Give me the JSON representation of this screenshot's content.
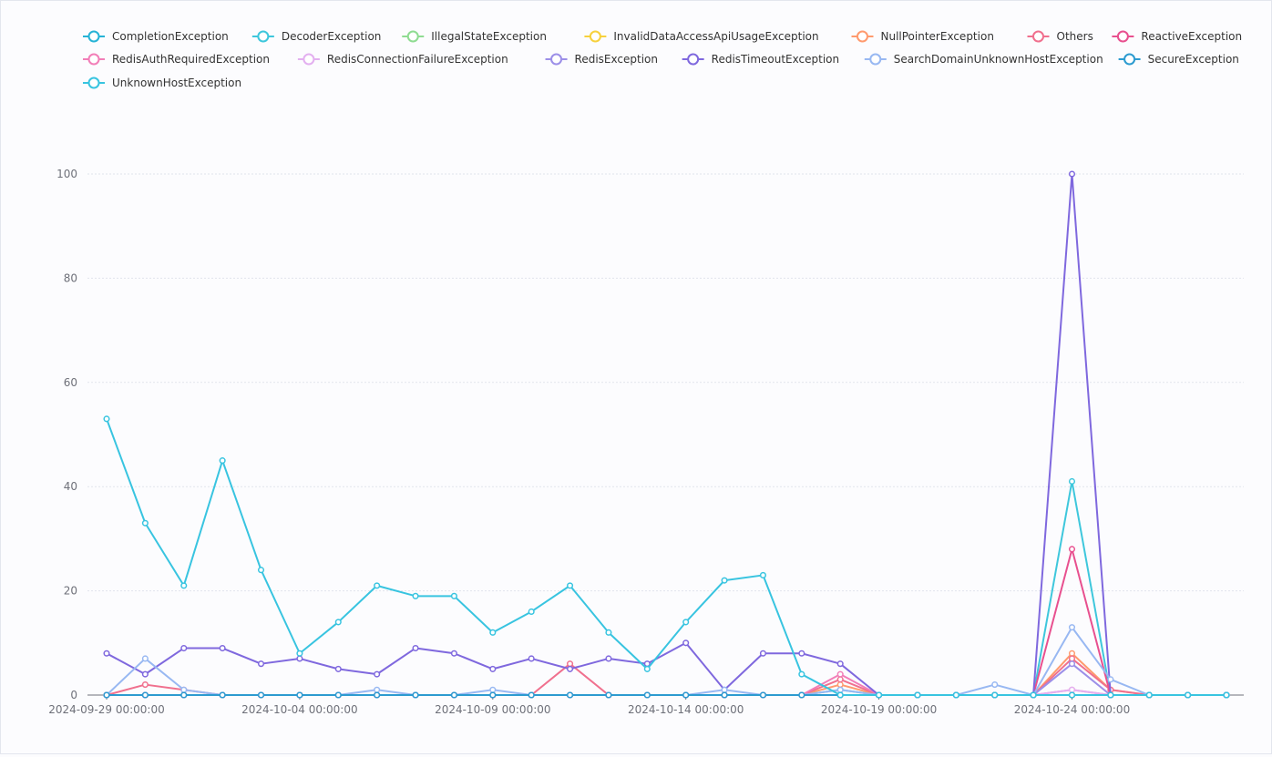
{
  "chart_data": {
    "type": "line",
    "title": "",
    "xlabel": "",
    "ylabel": "",
    "ylim": [
      0,
      100
    ],
    "yticks": [
      0,
      20,
      40,
      60,
      80,
      100
    ],
    "grid": true,
    "legend": "top-left",
    "x": [
      "2024-09-29 00:00:00",
      "2024-09-30 00:00:00",
      "2024-10-01 00:00:00",
      "2024-10-02 00:00:00",
      "2024-10-03 00:00:00",
      "2024-10-04 00:00:00",
      "2024-10-05 00:00:00",
      "2024-10-06 00:00:00",
      "2024-10-07 00:00:00",
      "2024-10-08 00:00:00",
      "2024-10-09 00:00:00",
      "2024-10-10 00:00:00",
      "2024-10-11 00:00:00",
      "2024-10-12 00:00:00",
      "2024-10-13 00:00:00",
      "2024-10-14 00:00:00",
      "2024-10-15 00:00:00",
      "2024-10-16 00:00:00",
      "2024-10-17 00:00:00",
      "2024-10-18 00:00:00",
      "2024-10-19 00:00:00",
      "2024-10-20 00:00:00",
      "2024-10-21 00:00:00",
      "2024-10-22 00:00:00",
      "2024-10-23 00:00:00",
      "2024-10-24 00:00:00",
      "2024-10-25 00:00:00",
      "2024-10-26 00:00:00",
      "2024-10-27 00:00:00",
      "2024-10-28 00:00:00"
    ],
    "xtick_labels": [
      "2024-09-29 00:00:00",
      "2024-10-04 00:00:00",
      "2024-10-09 00:00:00",
      "2024-10-14 00:00:00",
      "2024-10-19 00:00:00",
      "2024-10-24 00:00:00"
    ],
    "series": [
      {
        "name": "CompletionException",
        "color": "#26b3d6",
        "values": [
          0,
          0,
          0,
          0,
          0,
          0,
          0,
          0,
          0,
          0,
          0,
          0,
          0,
          0,
          0,
          0,
          0,
          0,
          0,
          0,
          0,
          0,
          0,
          0,
          0,
          0,
          0,
          0,
          0,
          0
        ]
      },
      {
        "name": "DecoderException",
        "color": "#3ec7dc",
        "values": [
          0,
          0,
          0,
          0,
          0,
          0,
          0,
          0,
          0,
          0,
          0,
          0,
          0,
          0,
          0,
          0,
          0,
          0,
          0,
          1,
          0,
          0,
          0,
          0,
          0,
          41,
          0,
          0,
          0,
          0
        ]
      },
      {
        "name": "IllegalStateException",
        "color": "#8fdc92",
        "values": [
          0,
          0,
          0,
          0,
          0,
          0,
          0,
          0,
          0,
          0,
          0,
          0,
          0,
          0,
          0,
          0,
          0,
          0,
          0,
          0,
          0,
          0,
          0,
          0,
          0,
          0,
          0,
          0,
          0,
          0
        ]
      },
      {
        "name": "InvalidDataAccessApiUsageException",
        "color": "#f7d13d",
        "values": [
          0,
          0,
          0,
          0,
          0,
          0,
          0,
          0,
          0,
          0,
          0,
          0,
          0,
          0,
          0,
          0,
          0,
          0,
          0,
          0,
          0,
          0,
          0,
          0,
          0,
          0,
          0,
          0,
          0,
          0
        ]
      },
      {
        "name": "NullPointerException",
        "color": "#ff9a6e",
        "values": [
          0,
          0,
          0,
          0,
          0,
          0,
          0,
          0,
          0,
          0,
          0,
          0,
          0,
          0,
          0,
          0,
          0,
          0,
          0,
          2,
          0,
          0,
          0,
          0,
          0,
          8,
          1,
          0,
          0,
          0
        ]
      },
      {
        "name": "Others",
        "color": "#f0708e",
        "values": [
          0,
          2,
          1,
          0,
          0,
          0,
          0,
          0,
          0,
          0,
          0,
          0,
          6,
          0,
          0,
          0,
          0,
          0,
          0,
          3,
          0,
          0,
          0,
          0,
          0,
          7,
          1,
          0,
          0,
          0
        ]
      },
      {
        "name": "ReactiveException",
        "color": "#e8508f",
        "values": [
          0,
          0,
          0,
          0,
          0,
          0,
          0,
          0,
          0,
          0,
          0,
          0,
          0,
          0,
          0,
          0,
          0,
          0,
          0,
          0,
          0,
          0,
          0,
          0,
          0,
          28,
          0,
          0,
          0,
          0
        ]
      },
      {
        "name": "RedisAuthRequiredException",
        "color": "#f27eb8",
        "values": [
          0,
          0,
          0,
          0,
          0,
          0,
          0,
          0,
          0,
          0,
          0,
          0,
          0,
          0,
          0,
          0,
          0,
          0,
          0,
          4,
          0,
          0,
          0,
          0,
          0,
          1,
          0,
          0,
          0,
          0
        ]
      },
      {
        "name": "RedisConnectionFailureException",
        "color": "#e3b0f0",
        "values": [
          0,
          0,
          0,
          0,
          0,
          0,
          0,
          0,
          0,
          0,
          0,
          0,
          0,
          0,
          0,
          0,
          0,
          0,
          0,
          0,
          0,
          0,
          0,
          0,
          0,
          1,
          0,
          0,
          0,
          0
        ]
      },
      {
        "name": "RedisException",
        "color": "#9c8fe8",
        "values": [
          0,
          0,
          0,
          0,
          0,
          0,
          0,
          0,
          0,
          0,
          0,
          0,
          0,
          0,
          0,
          0,
          0,
          0,
          0,
          0,
          0,
          0,
          0,
          0,
          0,
          6,
          0,
          0,
          0,
          0
        ]
      },
      {
        "name": "RedisTimeoutException",
        "color": "#7f68de",
        "values": [
          8,
          4,
          9,
          9,
          6,
          7,
          5,
          4,
          9,
          8,
          5,
          7,
          5,
          7,
          6,
          10,
          1,
          8,
          8,
          6,
          0,
          0,
          0,
          0,
          0,
          100,
          0,
          0,
          0,
          0
        ]
      },
      {
        "name": "SearchDomainUnknownHostException",
        "color": "#98b8f2",
        "values": [
          0,
          7,
          1,
          0,
          0,
          0,
          0,
          1,
          0,
          0,
          1,
          0,
          0,
          0,
          0,
          0,
          1,
          0,
          0,
          1,
          0,
          0,
          0,
          2,
          0,
          13,
          3,
          0,
          0,
          0
        ]
      },
      {
        "name": "SecureException",
        "color": "#2d9bd0",
        "values": [
          0,
          0,
          0,
          0,
          0,
          0,
          0,
          0,
          0,
          0,
          0,
          0,
          0,
          0,
          0,
          0,
          0,
          0,
          0,
          0,
          0,
          0,
          0,
          0,
          0,
          0,
          0,
          0,
          0,
          0
        ]
      },
      {
        "name": "UnknownHostException",
        "color": "#38c4e0",
        "values": [
          53,
          33,
          21,
          45,
          24,
          8,
          14,
          21,
          19,
          19,
          12,
          16,
          21,
          12,
          5,
          14,
          22,
          23,
          4,
          0,
          0,
          0,
          0,
          0,
          0,
          0,
          0,
          0,
          0,
          0
        ]
      }
    ]
  }
}
